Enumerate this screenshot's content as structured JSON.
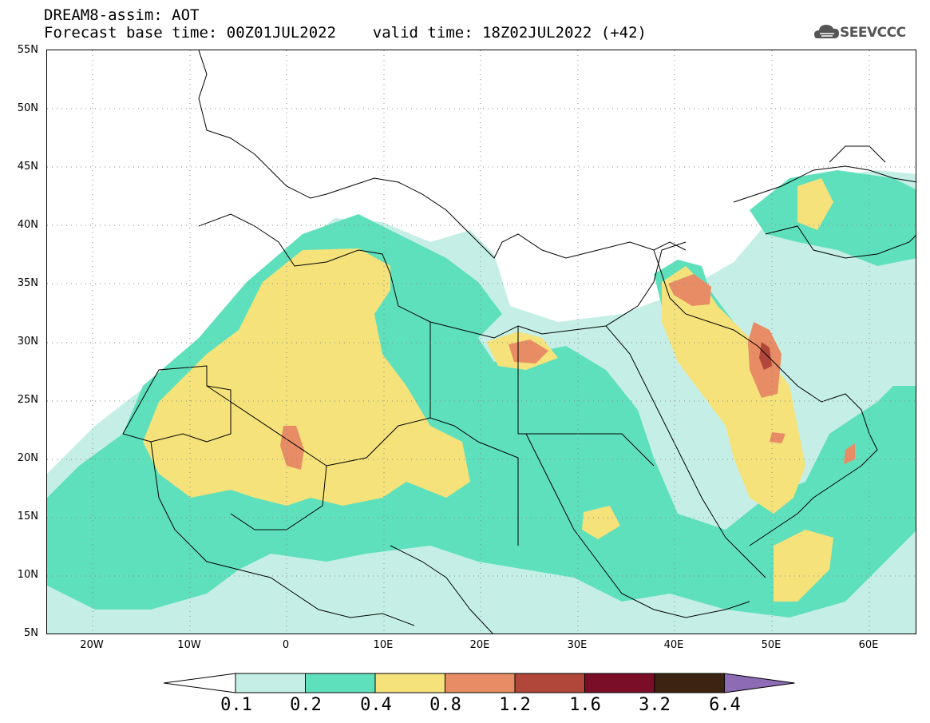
{
  "title_line1": "DREAM8-assim: AOT",
  "title_line2": "Forecast base time: 00Z01JUL2022    valid time: 18Z02JUL2022 (+42)",
  "logo": {
    "icon": "cloud-icon",
    "text": "SEEVCCC"
  },
  "lat_labels": [
    "55N",
    "50N",
    "45N",
    "40N",
    "35N",
    "30N",
    "25N",
    "20N",
    "15N",
    "10N",
    "5N"
  ],
  "lon_labels": [
    "20W",
    "10W",
    "0",
    "10E",
    "20E",
    "30E",
    "40E",
    "50E",
    "60E"
  ],
  "colorbar": {
    "levels": [
      "0.1",
      "0.2",
      "0.4",
      "0.8",
      "1.2",
      "1.6",
      "3.2",
      "6.4"
    ],
    "colors": [
      "#ffffff",
      "#c5efe6",
      "#5fe0bc",
      "#f5e27a",
      "#e88c65",
      "#b0473a",
      "#7a0d28",
      "#3d2412",
      "#8d6bb5"
    ]
  }
}
